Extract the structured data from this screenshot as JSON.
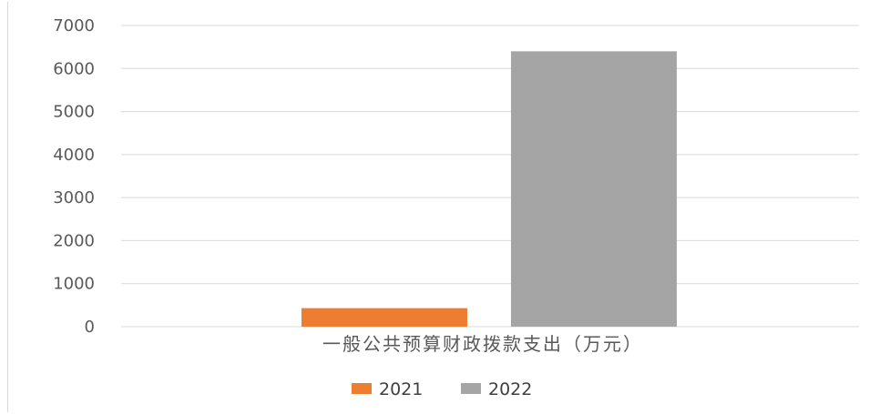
{
  "chart_data": {
    "type": "bar",
    "categories": [
      "一般公共预算财政拨款支出（万元）"
    ],
    "series": [
      {
        "name": "2021",
        "values": [
          430
        ],
        "color": "#ed7d31"
      },
      {
        "name": "2022",
        "values": [
          6400
        ],
        "color": "#a5a5a5"
      }
    ],
    "ylim": [
      0,
      7000
    ],
    "yticks": [
      "0",
      "1000",
      "2000",
      "3000",
      "4000",
      "5000",
      "6000",
      "7000"
    ],
    "grid": true,
    "legend_position": "bottom"
  }
}
